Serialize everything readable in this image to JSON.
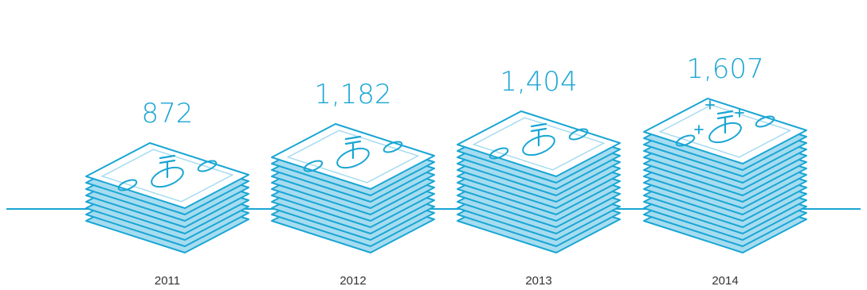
{
  "chart_data": {
    "type": "bar",
    "categories": [
      "2011",
      "2012",
      "2013",
      "2014"
    ],
    "values": [
      872,
      1182,
      1404,
      1607
    ],
    "value_labels": [
      "872",
      "1,182",
      "1,404",
      "1,607"
    ],
    "title": "",
    "xlabel": "",
    "ylabel": "",
    "grid": false,
    "mark_style": "stacks-of-banknotes",
    "currency_icon": "tenge-sign-icon",
    "highlight_category": "2014",
    "highlight_icon": "plus-sparkle-icon"
  },
  "colors": {
    "accent": "#1aa6d4",
    "note_fill": "#a6dcf0",
    "note_face": "#ffffff",
    "baseline": "#1aa6d4",
    "year_text": "#333333",
    "value_text": "#1aa6d4"
  }
}
